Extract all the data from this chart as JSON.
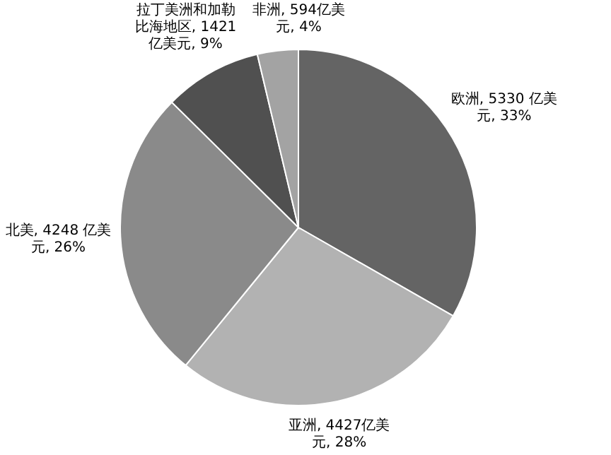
{
  "chart_data": {
    "type": "pie",
    "categories": [
      "欧洲",
      "亚洲",
      "北美",
      "拉丁美洲和加勒比海地区",
      "非洲"
    ],
    "values": [
      5330,
      4427,
      4248,
      1421,
      594
    ],
    "value_labels": [
      "5330 亿美元, 33%",
      "4427亿美元, 28%",
      "4248 亿美元, 26%",
      "1421亿美元, 9%",
      "594亿美元, 4%"
    ],
    "colors": [
      "#646464",
      "#b2b2b2",
      "#8a8a8a",
      "#505050",
      "#a3a3a3"
    ]
  }
}
